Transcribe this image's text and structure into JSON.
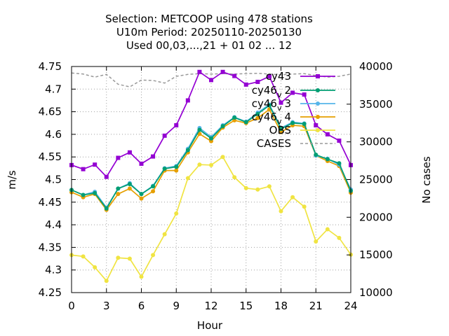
{
  "chart_data": {
    "type": "line",
    "title_lines": [
      "Selection: METCOOP using   478 stations",
      "U10m   Period: 20250110-20250130",
      "Used  00,03,...,21  + 01 02 ... 12"
    ],
    "xlabel": "Hour",
    "ylabel": "m/s",
    "y2label": "No cases",
    "xlim": [
      0,
      24
    ],
    "ylim": [
      4.25,
      4.75
    ],
    "y2lim": [
      10000,
      40000
    ],
    "xticks": [
      0,
      3,
      6,
      9,
      12,
      15,
      18,
      21,
      24
    ],
    "yticks": [
      4.25,
      4.3,
      4.35,
      4.4,
      4.45,
      4.5,
      4.55,
      4.6,
      4.65,
      4.7,
      4.75
    ],
    "ytick_labels": [
      "4.25",
      "4.3",
      "4.35",
      "4.4",
      "4.45",
      "4.5",
      "4.55",
      "4.6",
      "4.65",
      "4.7",
      "4.75"
    ],
    "y2ticks": [
      10000,
      15000,
      20000,
      25000,
      30000,
      35000,
      40000
    ],
    "grid": true,
    "legend_position": "top-right",
    "x": [
      0,
      1,
      2,
      3,
      4,
      5,
      6,
      7,
      8,
      9,
      10,
      11,
      12,
      13,
      14,
      15,
      16,
      17,
      18,
      19,
      20,
      21,
      22,
      23,
      24
    ],
    "series": [
      {
        "name": "cy43",
        "color": "#9400d3",
        "marker": "square",
        "axis": "y",
        "values": [
          4.532,
          4.523,
          4.533,
          4.506,
          4.548,
          4.56,
          4.535,
          4.551,
          4.597,
          4.62,
          4.675,
          4.738,
          4.72,
          4.738,
          4.729,
          4.71,
          4.716,
          4.728,
          4.67,
          4.692,
          4.688,
          4.62,
          4.6,
          4.586,
          4.532
        ]
      },
      {
        "name": "cy46_v_2",
        "color": "#009e73",
        "marker": "circle",
        "axis": "y",
        "values": [
          4.477,
          4.466,
          4.47,
          4.436,
          4.48,
          4.49,
          4.468,
          4.485,
          4.524,
          4.528,
          4.565,
          4.61,
          4.591,
          4.618,
          4.637,
          4.627,
          4.645,
          4.664,
          4.612,
          4.625,
          4.623,
          4.555,
          4.545,
          4.536,
          4.475
        ]
      },
      {
        "name": "cy46_v_3",
        "color": "#56b4e9",
        "marker": "circle",
        "axis": "y",
        "values": [
          4.477,
          4.466,
          4.473,
          4.438,
          4.48,
          4.492,
          4.468,
          4.486,
          4.525,
          4.53,
          4.568,
          4.614,
          4.594,
          4.62,
          4.638,
          4.628,
          4.648,
          4.666,
          4.614,
          4.627,
          4.624,
          4.553,
          4.546,
          4.533,
          4.478
        ]
      },
      {
        "name": "cy46_v_4",
        "color": "#e69f00",
        "marker": "circle",
        "axis": "y",
        "values": [
          4.472,
          4.461,
          4.468,
          4.433,
          4.468,
          4.48,
          4.458,
          4.474,
          4.52,
          4.52,
          4.56,
          4.601,
          4.585,
          4.615,
          4.631,
          4.625,
          4.636,
          4.655,
          4.605,
          4.62,
          4.618,
          4.553,
          4.541,
          4.53,
          4.471
        ]
      },
      {
        "name": "OBS",
        "color": "#f0e442",
        "marker": "circle",
        "axis": "y",
        "values": [
          4.333,
          4.33,
          4.306,
          4.276,
          4.327,
          4.325,
          4.285,
          4.333,
          4.379,
          4.425,
          4.503,
          4.533,
          4.532,
          4.55,
          4.505,
          4.481,
          4.478,
          4.485,
          4.43,
          4.461,
          4.44,
          4.363,
          4.39,
          4.371,
          4.334
        ]
      },
      {
        "name": "CASES",
        "color": "#999999",
        "marker": "none",
        "dash": true,
        "axis": "y2",
        "values": [
          39150,
          39000,
          38600,
          38950,
          37650,
          37300,
          38200,
          38150,
          37800,
          38700,
          38950,
          39050,
          39000,
          39050,
          39000,
          39050,
          39100,
          39000,
          38900,
          39000,
          39050,
          38800,
          38600,
          38700,
          39000
        ]
      }
    ]
  },
  "legend_labels": {
    "cy43": "cy43",
    "cy46_v_2_base": "cy46",
    "cy46_v_3_base": "cy46",
    "cy46_v_4_base": "cy46",
    "sub_v": "v",
    "sub_2": "2",
    "sub_3": "3",
    "sub_4": "4",
    "obs": "OBS",
    "cases": "CASES"
  }
}
